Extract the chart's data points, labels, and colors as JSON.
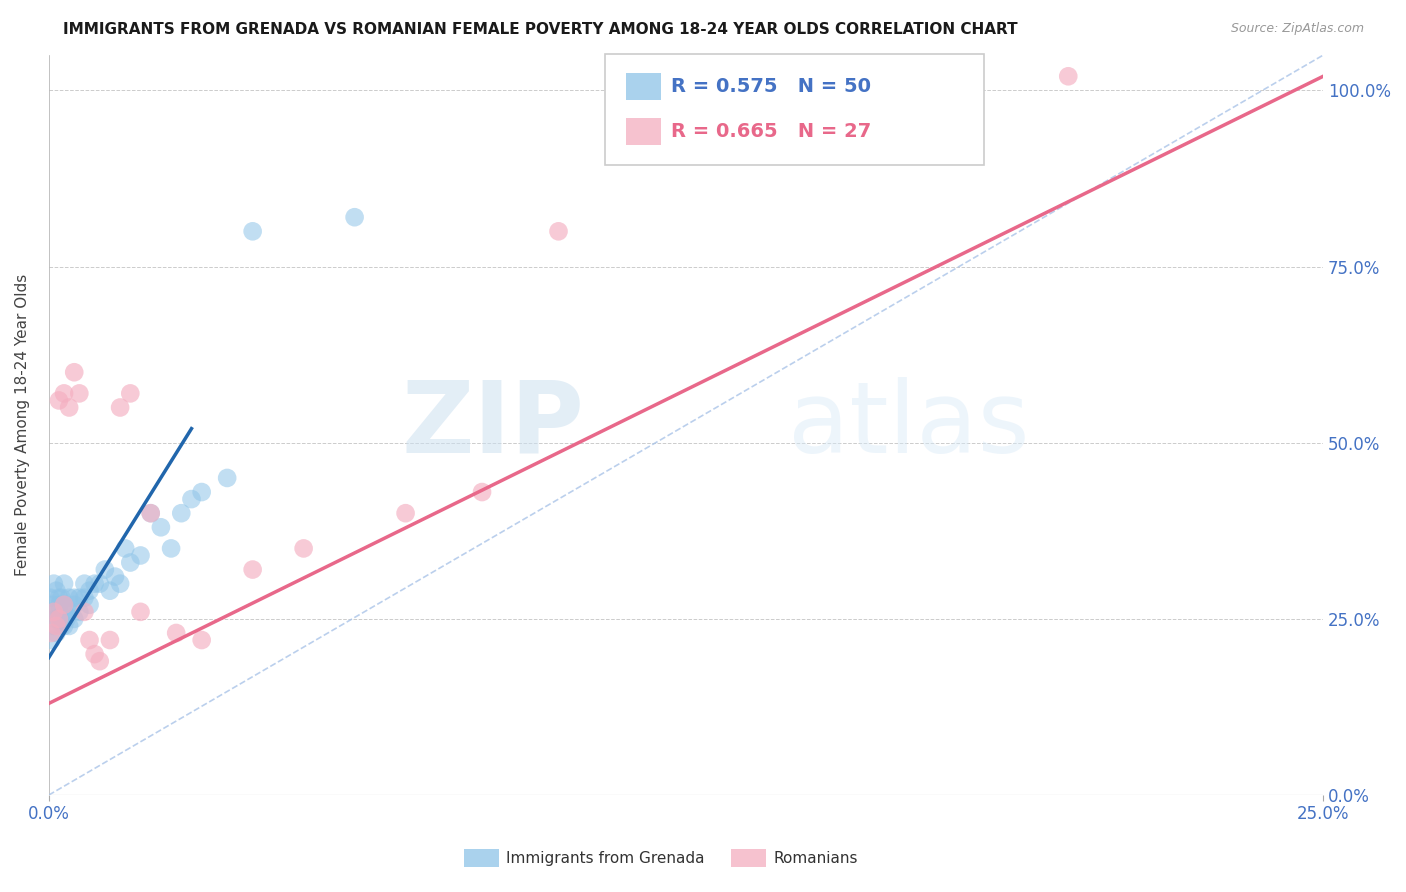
{
  "title": "IMMIGRANTS FROM GRENADA VS ROMANIAN FEMALE POVERTY AMONG 18-24 YEAR OLDS CORRELATION CHART",
  "source": "Source: ZipAtlas.com",
  "ylabel": "Female Poverty Among 18-24 Year Olds",
  "legend1_label": "Immigrants from Grenada",
  "legend2_label": "Romanians",
  "R1": 0.575,
  "N1": 50,
  "R2": 0.665,
  "N2": 27,
  "blue_color": "#8ec4e8",
  "pink_color": "#f4aec0",
  "blue_line_color": "#2166ac",
  "pink_line_color": "#e8688a",
  "diag_color": "#aac4e8",
  "xlim": [
    0.0,
    0.25
  ],
  "ylim": [
    0.0,
    1.05
  ],
  "xtick_labels": [
    "0.0%",
    "25.0%"
  ],
  "xtick_vals": [
    0.0,
    0.25
  ],
  "yticks_right": [
    0.0,
    0.25,
    0.5,
    0.75,
    1.0
  ],
  "blue_scatter_x": [
    0.0003,
    0.0005,
    0.0008,
    0.001,
    0.001,
    0.001,
    0.0012,
    0.0015,
    0.0015,
    0.002,
    0.002,
    0.002,
    0.002,
    0.0025,
    0.0025,
    0.003,
    0.003,
    0.003,
    0.003,
    0.0035,
    0.004,
    0.004,
    0.004,
    0.005,
    0.005,
    0.005,
    0.006,
    0.006,
    0.007,
    0.007,
    0.008,
    0.008,
    0.009,
    0.01,
    0.011,
    0.012,
    0.013,
    0.014,
    0.015,
    0.016,
    0.018,
    0.02,
    0.022,
    0.024,
    0.026,
    0.028,
    0.03,
    0.035,
    0.04,
    0.06
  ],
  "blue_scatter_y": [
    0.28,
    0.22,
    0.27,
    0.26,
    0.3,
    0.24,
    0.25,
    0.23,
    0.29,
    0.27,
    0.26,
    0.28,
    0.25,
    0.24,
    0.28,
    0.26,
    0.27,
    0.24,
    0.3,
    0.25,
    0.26,
    0.28,
    0.24,
    0.28,
    0.25,
    0.27,
    0.28,
    0.26,
    0.3,
    0.28,
    0.29,
    0.27,
    0.3,
    0.3,
    0.32,
    0.29,
    0.31,
    0.3,
    0.35,
    0.33,
    0.34,
    0.4,
    0.38,
    0.35,
    0.4,
    0.42,
    0.43,
    0.45,
    0.8,
    0.82
  ],
  "pink_scatter_x": [
    0.0005,
    0.001,
    0.0015,
    0.002,
    0.002,
    0.003,
    0.003,
    0.004,
    0.005,
    0.006,
    0.007,
    0.008,
    0.009,
    0.01,
    0.012,
    0.014,
    0.016,
    0.018,
    0.02,
    0.025,
    0.03,
    0.04,
    0.05,
    0.07,
    0.085,
    0.1,
    0.2
  ],
  "pink_scatter_y": [
    0.23,
    0.26,
    0.24,
    0.25,
    0.56,
    0.57,
    0.27,
    0.55,
    0.6,
    0.57,
    0.26,
    0.22,
    0.2,
    0.19,
    0.22,
    0.55,
    0.57,
    0.26,
    0.4,
    0.23,
    0.22,
    0.32,
    0.35,
    0.4,
    0.43,
    0.8,
    1.02
  ],
  "blue_line_x": [
    0.0,
    0.028
  ],
  "blue_line_y": [
    0.195,
    0.52
  ],
  "pink_line_x": [
    0.0,
    0.25
  ],
  "pink_line_y": [
    0.13,
    1.02
  ],
  "diag_line_x": [
    0.0,
    0.25
  ],
  "diag_line_y": [
    0.0,
    1.05
  ],
  "watermark_zip": "ZIP",
  "watermark_atlas": "atlas",
  "background_color": "#ffffff",
  "grid_color": "#cccccc"
}
